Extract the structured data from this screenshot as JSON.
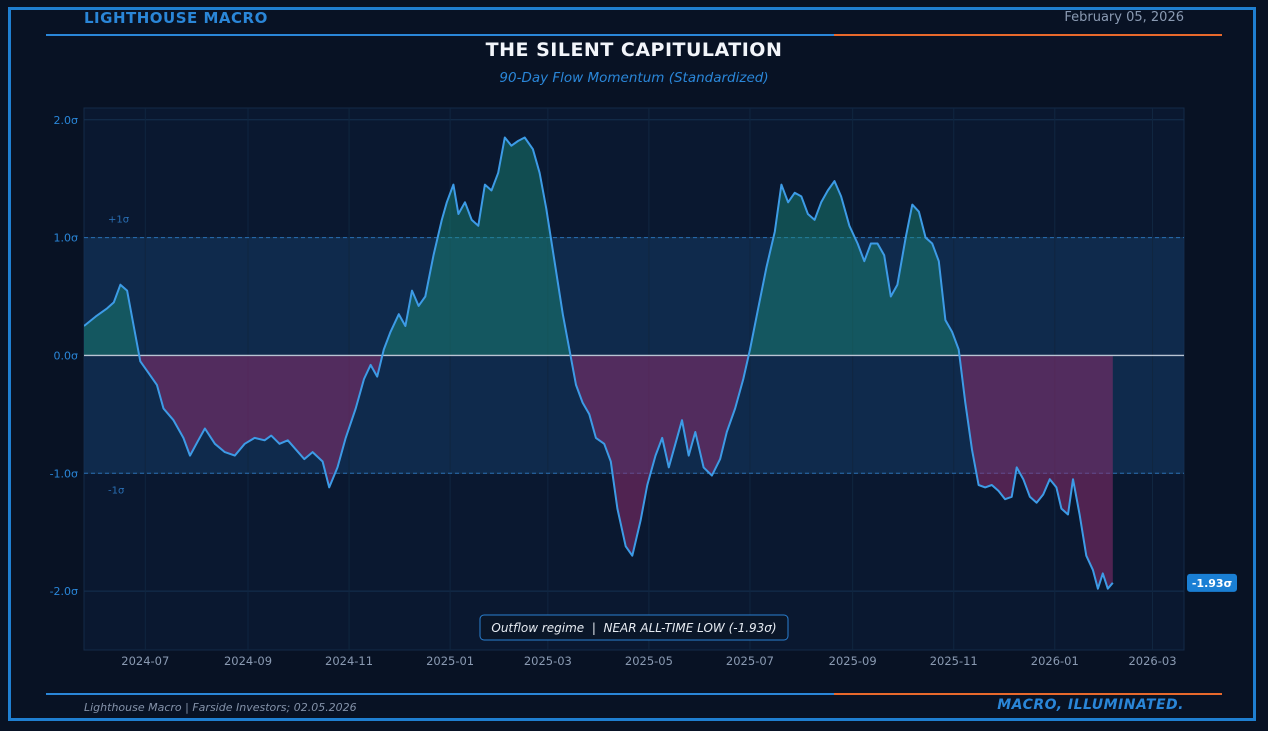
{
  "header": {
    "brand": "LIGHTHOUSE MACRO",
    "date": "February 05, 2026"
  },
  "footer": {
    "source": "Lighthouse Macro | Farside Investors; 02.05.2026",
    "tagline": "MACRO, ILLUMINATED."
  },
  "colors": {
    "background": "#081224",
    "frame": "#1f7fd1",
    "accent_blue": "#2a86d8",
    "accent_orange": "#e8692c",
    "line": "#3d9be6",
    "positive_fill": "#1b8f7a",
    "negative_fill": "#8a2d6e",
    "band_fill": "#123056"
  },
  "chart_data": {
    "type": "area",
    "title": "THE SILENT CAPITULATION",
    "subtitle": "90-Day Flow Momentum (Standardized)",
    "xlabel": "",
    "ylabel": "",
    "ylim": [
      -2.5,
      2.1
    ],
    "xlim": [
      "2024-05-25",
      "2026-03-20"
    ],
    "y_ticks": [
      {
        "value": 2,
        "label": "2.0σ"
      },
      {
        "value": 1,
        "label": "1.0σ"
      },
      {
        "value": 0,
        "label": "0.0σ"
      },
      {
        "value": -1,
        "label": "-1.0σ"
      },
      {
        "value": -2,
        "label": "-2.0σ"
      }
    ],
    "x_ticks": [
      {
        "date": "2024-07-01",
        "label": "2024-07"
      },
      {
        "date": "2024-09-01",
        "label": "2024-09"
      },
      {
        "date": "2024-11-01",
        "label": "2024-11"
      },
      {
        "date": "2025-01-01",
        "label": "2025-01"
      },
      {
        "date": "2025-03-01",
        "label": "2025-03"
      },
      {
        "date": "2025-05-01",
        "label": "2025-05"
      },
      {
        "date": "2025-07-01",
        "label": "2025-07"
      },
      {
        "date": "2025-09-01",
        "label": "2025-09"
      },
      {
        "date": "2025-11-01",
        "label": "2025-11"
      },
      {
        "date": "2026-01-01",
        "label": "2026-01"
      },
      {
        "date": "2026-03-01",
        "label": "2026-03"
      }
    ],
    "bands": [
      {
        "value": 1,
        "label": "+1σ"
      },
      {
        "value": -1,
        "label": "-1σ"
      }
    ],
    "annotation": "Outflow regime  |  NEAR ALL-TIME LOW (-1.93σ)",
    "last_value_label": "-1.93σ",
    "last_value": -1.93,
    "series": [
      {
        "name": "90-Day Flow Momentum",
        "points": [
          [
            "2024-05-25",
            0.25
          ],
          [
            "2024-06-01",
            0.33
          ],
          [
            "2024-06-08",
            0.4
          ],
          [
            "2024-06-12",
            0.45
          ],
          [
            "2024-06-16",
            0.6
          ],
          [
            "2024-06-20",
            0.55
          ],
          [
            "2024-06-24",
            0.25
          ],
          [
            "2024-06-28",
            -0.05
          ],
          [
            "2024-07-03",
            -0.15
          ],
          [
            "2024-07-08",
            -0.25
          ],
          [
            "2024-07-12",
            -0.45
          ],
          [
            "2024-07-18",
            -0.55
          ],
          [
            "2024-07-24",
            -0.7
          ],
          [
            "2024-07-28",
            -0.85
          ],
          [
            "2024-08-02",
            -0.72
          ],
          [
            "2024-08-06",
            -0.62
          ],
          [
            "2024-08-12",
            -0.75
          ],
          [
            "2024-08-18",
            -0.82
          ],
          [
            "2024-08-24",
            -0.85
          ],
          [
            "2024-08-30",
            -0.75
          ],
          [
            "2024-09-05",
            -0.7
          ],
          [
            "2024-09-11",
            -0.72
          ],
          [
            "2024-09-15",
            -0.68
          ],
          [
            "2024-09-20",
            -0.75
          ],
          [
            "2024-09-25",
            -0.72
          ],
          [
            "2024-09-30",
            -0.8
          ],
          [
            "2024-10-05",
            -0.88
          ],
          [
            "2024-10-10",
            -0.82
          ],
          [
            "2024-10-16",
            -0.9
          ],
          [
            "2024-10-20",
            -1.12
          ],
          [
            "2024-10-25",
            -0.95
          ],
          [
            "2024-10-30",
            -0.7
          ],
          [
            "2024-11-05",
            -0.45
          ],
          [
            "2024-11-10",
            -0.2
          ],
          [
            "2024-11-14",
            -0.08
          ],
          [
            "2024-11-18",
            -0.18
          ],
          [
            "2024-11-22",
            0.05
          ],
          [
            "2024-11-26",
            0.2
          ],
          [
            "2024-12-01",
            0.35
          ],
          [
            "2024-12-05",
            0.25
          ],
          [
            "2024-12-09",
            0.55
          ],
          [
            "2024-12-13",
            0.42
          ],
          [
            "2024-12-17",
            0.5
          ],
          [
            "2024-12-22",
            0.85
          ],
          [
            "2024-12-27",
            1.15
          ],
          [
            "2024-12-30",
            1.3
          ],
          [
            "2025-01-03",
            1.45
          ],
          [
            "2025-01-06",
            1.2
          ],
          [
            "2025-01-10",
            1.3
          ],
          [
            "2025-01-14",
            1.15
          ],
          [
            "2025-01-18",
            1.1
          ],
          [
            "2025-01-22",
            1.45
          ],
          [
            "2025-01-26",
            1.4
          ],
          [
            "2025-01-30",
            1.55
          ],
          [
            "2025-02-03",
            1.85
          ],
          [
            "2025-02-07",
            1.78
          ],
          [
            "2025-02-11",
            1.82
          ],
          [
            "2025-02-15",
            1.85
          ],
          [
            "2025-02-20",
            1.75
          ],
          [
            "2025-02-24",
            1.55
          ],
          [
            "2025-02-28",
            1.25
          ],
          [
            "2025-03-05",
            0.8
          ],
          [
            "2025-03-10",
            0.35
          ],
          [
            "2025-03-14",
            0.05
          ],
          [
            "2025-03-18",
            -0.25
          ],
          [
            "2025-03-22",
            -0.4
          ],
          [
            "2025-03-26",
            -0.5
          ],
          [
            "2025-03-30",
            -0.7
          ],
          [
            "2025-04-04",
            -0.75
          ],
          [
            "2025-04-08",
            -0.9
          ],
          [
            "2025-04-12",
            -1.3
          ],
          [
            "2025-04-17",
            -1.62
          ],
          [
            "2025-04-21",
            -1.7
          ],
          [
            "2025-04-26",
            -1.4
          ],
          [
            "2025-04-30",
            -1.1
          ],
          [
            "2025-05-05",
            -0.85
          ],
          [
            "2025-05-09",
            -0.7
          ],
          [
            "2025-05-13",
            -0.95
          ],
          [
            "2025-05-17",
            -0.75
          ],
          [
            "2025-05-21",
            -0.55
          ],
          [
            "2025-05-25",
            -0.85
          ],
          [
            "2025-05-29",
            -0.65
          ],
          [
            "2025-06-03",
            -0.95
          ],
          [
            "2025-06-08",
            -1.02
          ],
          [
            "2025-06-13",
            -0.88
          ],
          [
            "2025-06-17",
            -0.65
          ],
          [
            "2025-06-22",
            -0.45
          ],
          [
            "2025-06-27",
            -0.2
          ],
          [
            "2025-07-01",
            0.05
          ],
          [
            "2025-07-06",
            0.4
          ],
          [
            "2025-07-11",
            0.75
          ],
          [
            "2025-07-16",
            1.05
          ],
          [
            "2025-07-20",
            1.45
          ],
          [
            "2025-07-24",
            1.3
          ],
          [
            "2025-07-28",
            1.38
          ],
          [
            "2025-08-01",
            1.35
          ],
          [
            "2025-08-05",
            1.2
          ],
          [
            "2025-08-09",
            1.15
          ],
          [
            "2025-08-13",
            1.3
          ],
          [
            "2025-08-17",
            1.4
          ],
          [
            "2025-08-21",
            1.48
          ],
          [
            "2025-08-25",
            1.35
          ],
          [
            "2025-08-30",
            1.1
          ],
          [
            "2025-09-04",
            0.95
          ],
          [
            "2025-09-08",
            0.8
          ],
          [
            "2025-09-12",
            0.95
          ],
          [
            "2025-09-16",
            0.95
          ],
          [
            "2025-09-20",
            0.85
          ],
          [
            "2025-09-24",
            0.5
          ],
          [
            "2025-09-28",
            0.6
          ],
          [
            "2025-10-03",
            1.0
          ],
          [
            "2025-10-07",
            1.28
          ],
          [
            "2025-10-11",
            1.22
          ],
          [
            "2025-10-15",
            1.0
          ],
          [
            "2025-10-19",
            0.95
          ],
          [
            "2025-10-23",
            0.8
          ],
          [
            "2025-10-27",
            0.3
          ],
          [
            "2025-10-31",
            0.2
          ],
          [
            "2025-11-04",
            0.05
          ],
          [
            "2025-11-08",
            -0.4
          ],
          [
            "2025-11-12",
            -0.8
          ],
          [
            "2025-11-16",
            -1.1
          ],
          [
            "2025-11-20",
            -1.12
          ],
          [
            "2025-11-24",
            -1.1
          ],
          [
            "2025-11-28",
            -1.15
          ],
          [
            "2025-12-02",
            -1.22
          ],
          [
            "2025-12-06",
            -1.2
          ],
          [
            "2025-12-09",
            -0.95
          ],
          [
            "2025-12-13",
            -1.05
          ],
          [
            "2025-12-17",
            -1.2
          ],
          [
            "2025-12-21",
            -1.25
          ],
          [
            "2025-12-25",
            -1.18
          ],
          [
            "2025-12-29",
            -1.05
          ],
          [
            "2026-01-02",
            -1.12
          ],
          [
            "2026-01-05",
            -1.3
          ],
          [
            "2026-01-09",
            -1.35
          ],
          [
            "2026-01-12",
            -1.05
          ],
          [
            "2026-01-16",
            -1.35
          ],
          [
            "2026-01-20",
            -1.7
          ],
          [
            "2026-01-24",
            -1.82
          ],
          [
            "2026-01-27",
            -1.98
          ],
          [
            "2026-01-30",
            -1.85
          ],
          [
            "2026-02-02",
            -1.98
          ],
          [
            "2026-02-05",
            -1.93
          ]
        ]
      }
    ]
  }
}
